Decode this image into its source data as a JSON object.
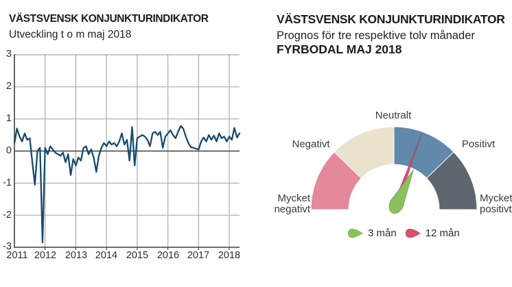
{
  "left_panel": {
    "title": "VÄSTSVENSK KONJUNKTURINDIKATOR",
    "subtitle": "Utveckling t o m maj 2018"
  },
  "right_panel": {
    "title": "VÄSTSVENSK KONJUNKTURINDIKATOR",
    "subtitle": "Prognos för tre respektive tolv månader",
    "subtitle_bold": "FYRBODAL MAJ 2018"
  },
  "chart_data": [
    {
      "type": "line",
      "title": "VÄSTSVENSK KONJUNKTURINDIKATOR",
      "subtitle": "Utveckling t o m maj 2018",
      "x_range": [
        "2011-01",
        "2018-05"
      ],
      "x_tick_labels": [
        "2011",
        "2012",
        "2013",
        "2014",
        "2015",
        "2016",
        "2017",
        "2018"
      ],
      "y_tick_labels": [
        "3",
        "2",
        "1",
        "0",
        "-1",
        "-2",
        "-3"
      ],
      "ylim": [
        -3,
        3
      ],
      "grid_on": true,
      "line_color": "#164a6e",
      "monthly_values": [
        0.25,
        0.7,
        0.45,
        0.3,
        0.55,
        0.35,
        0.4,
        -0.35,
        -1.05,
        0.0,
        0.1,
        -2.85,
        0.1,
        -0.1,
        0.15,
        0.05,
        -0.05,
        -0.1,
        -0.15,
        -0.05,
        -0.35,
        -0.1,
        -0.75,
        -0.25,
        -0.45,
        -0.2,
        -0.3,
        0.1,
        0.15,
        -0.1,
        0.05,
        -0.2,
        -0.65,
        -0.15,
        0.1,
        0.25,
        0.15,
        0.3,
        0.2,
        0.25,
        0.15,
        0.3,
        0.55,
        0.2,
        0.35,
        -0.3,
        0.75,
        -0.45,
        0.4,
        0.45,
        0.5,
        0.45,
        0.35,
        0.15,
        0.55,
        0.6,
        0.5,
        0.6,
        0.1,
        0.45,
        0.55,
        0.65,
        0.5,
        0.4,
        0.6,
        0.78,
        0.7,
        0.45,
        0.25,
        0.12,
        0.1,
        0.07,
        0.05,
        0.3,
        0.42,
        0.3,
        0.5,
        0.35,
        0.48,
        0.3,
        0.55,
        0.4,
        0.45,
        0.3,
        0.45,
        0.35,
        0.72,
        0.42,
        0.55
      ]
    },
    {
      "type": "gauge",
      "title": "FYRBODAL MAJ 2018",
      "scale_labels": [
        {
          "label": "Mycket negativt",
          "angle_deg": 180
        },
        {
          "label": "Negativt",
          "angle_deg": 135
        },
        {
          "label": "Neutralt",
          "angle_deg": 90
        },
        {
          "label": "Positivt",
          "angle_deg": 45
        },
        {
          "label": "Mycket positivt",
          "angle_deg": 0
        }
      ],
      "segments": [
        {
          "color": "#e5889c",
          "start_deg": 180,
          "end_deg": 136
        },
        {
          "color": "#eae2cc",
          "start_deg": 136,
          "end_deg": 90
        },
        {
          "color": "#6089aa",
          "start_deg": 90,
          "end_deg": 44
        },
        {
          "color": "#5e6770",
          "start_deg": 44,
          "end_deg": 0
        }
      ],
      "needles": [
        {
          "name": "12 mån",
          "color": "#d8506c",
          "angle_from_vertical_deg": 20,
          "length": 118
        },
        {
          "name": "3 mån",
          "color": "#8bc05c",
          "angle_from_vertical_deg": 26,
          "length": 66
        }
      ],
      "legend": [
        {
          "label": "3 mån",
          "color": "#8bc05c"
        },
        {
          "label": "12 mån",
          "color": "#d8506c"
        }
      ]
    }
  ]
}
